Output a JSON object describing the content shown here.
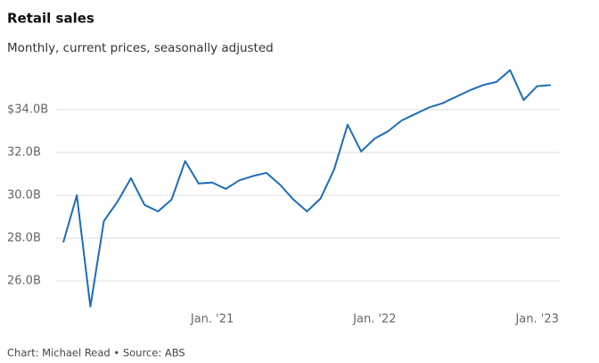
{
  "chart_data": {
    "type": "line",
    "title": "Retail sales",
    "subtitle": "Monthly, current prices, seasonally adjusted",
    "source": "Chart: Michael Read • Source: ABS",
    "categories": [
      null,
      null,
      null,
      null,
      null,
      null,
      null,
      null,
      null,
      null,
      null,
      "Jan. '21",
      null,
      null,
      null,
      null,
      null,
      null,
      null,
      null,
      null,
      null,
      null,
      "Jan. '22",
      null,
      null,
      null,
      null,
      null,
      null,
      null,
      null,
      null,
      null,
      null,
      "Jan. '23",
      null
    ],
    "series": [
      {
        "name": "Retail sales",
        "color": "#1f6cb7",
        "values": [
          27.8,
          30.0,
          24.8,
          28.8,
          29.7,
          30.8,
          29.55,
          29.25,
          29.8,
          31.6,
          30.55,
          30.6,
          30.3,
          30.7,
          30.9,
          31.05,
          30.5,
          29.8,
          29.25,
          29.85,
          31.2,
          33.3,
          32.05,
          32.65,
          33.0,
          33.5,
          33.8,
          34.1,
          34.3,
          34.6,
          34.9,
          35.15,
          35.3,
          35.85,
          34.45,
          35.1,
          35.15
        ]
      }
    ],
    "ylim": [
      24.75,
      36
    ],
    "yticks": [
      {
        "value": 26,
        "label": "26.0B"
      },
      {
        "value": 28,
        "label": "28.0B"
      },
      {
        "value": 30,
        "label": "30.0B"
      },
      {
        "value": 32,
        "label": "32.0B"
      },
      {
        "value": 34,
        "label": "$34.0B"
      }
    ],
    "grid": true
  }
}
